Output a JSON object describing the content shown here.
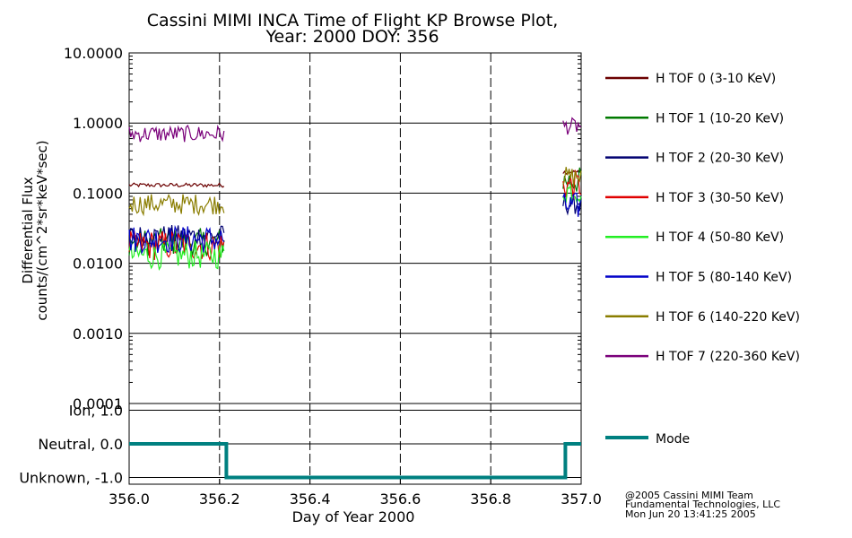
{
  "title": {
    "line1": "Cassini MIMI INCA Time of Flight KP Browse Plot,",
    "line2": "Year: 2000 DOY: 356"
  },
  "footer": {
    "line1": "@2005 Cassini MIMI Team",
    "line2": "Fundamental Technologies, LLC",
    "line3": "Mon Jun 20 13:41:25 2005"
  },
  "colors": {
    "tof0": "#6b0000",
    "tof1": "#007a00",
    "tof2": "#000070",
    "tof3": "#e00000",
    "tof4": "#22ee22",
    "tof5": "#0000c8",
    "tof6": "#8a7d00",
    "tof7": "#7a007a",
    "mode": "#008080"
  },
  "chart_data": [
    {
      "type": "line",
      "title": "Cassini MIMI INCA Time of Flight KP Browse Plot, Year: 2000 DOY: 356",
      "xlabel": "Day of Year 2000",
      "ylabel_line1": "Differential Flux",
      "ylabel_line2": "counts/(cm^2*sr*keV*sec)",
      "yscale": "log",
      "ylim": [
        0.0001,
        10.0
      ],
      "xlim": [
        356.0,
        357.0
      ],
      "yticks": [
        "10.0000",
        "1.0000",
        "0.1000",
        "0.0100",
        "0.0010",
        "0.0001"
      ],
      "xticks": [
        "356.0",
        "356.2",
        "356.4",
        "356.6",
        "356.8",
        "357.0"
      ],
      "grid": true,
      "legend_position": "right",
      "segments": [
        [
          356.0,
          356.21
        ],
        [
          356.96,
          357.0
        ]
      ],
      "series": [
        {
          "name": "H TOF 0 (3-10 KeV)",
          "color_key": "tof0",
          "level": 0.13,
          "noise": 0.03,
          "end_level": 0.2
        },
        {
          "name": "H TOF 1 (10-20 KeV)",
          "color_key": "tof1",
          "level": 0.02,
          "noise": 0.2,
          "end_level": 0.15
        },
        {
          "name": "H TOF 2 (20-30 KeV)",
          "color_key": "tof2",
          "level": 0.025,
          "noise": 0.15,
          "end_level": 0.07
        },
        {
          "name": "H TOF 3 (30-50 KeV)",
          "color_key": "tof3",
          "level": 0.018,
          "noise": 0.22,
          "end_level": 0.13
        },
        {
          "name": "H TOF 4 (50-80 KeV)",
          "color_key": "tof4",
          "level": 0.013,
          "noise": 0.2,
          "end_level": 0.11
        },
        {
          "name": "H TOF 5 (80-140 KeV)",
          "color_key": "tof5",
          "level": 0.022,
          "noise": 0.2,
          "end_level": 0.065
        },
        {
          "name": "H TOF 6 (140-220 KeV)",
          "color_key": "tof6",
          "level": 0.07,
          "noise": 0.15,
          "end_level": 0.17
        },
        {
          "name": "H TOF 7 (220-360 KeV)",
          "color_key": "tof7",
          "level": 0.7,
          "noise": 0.12,
          "end_level": 0.9
        }
      ]
    },
    {
      "type": "line",
      "title": "Mode",
      "ylim": [
        -1.2,
        1.2
      ],
      "yticks": [
        "Ion, 1.0",
        "Neutral, 0.0",
        "Unknown, -1.0"
      ],
      "ytick_values": [
        1.0,
        0.0,
        -1.0
      ],
      "grid": true,
      "series": [
        {
          "name": "Mode",
          "color_key": "mode",
          "x": [
            356.0,
            356.215,
            356.215,
            356.965,
            356.965,
            357.0
          ],
          "y": [
            0.0,
            0.0,
            -1.0,
            -1.0,
            0.0,
            0.0
          ]
        }
      ]
    }
  ]
}
